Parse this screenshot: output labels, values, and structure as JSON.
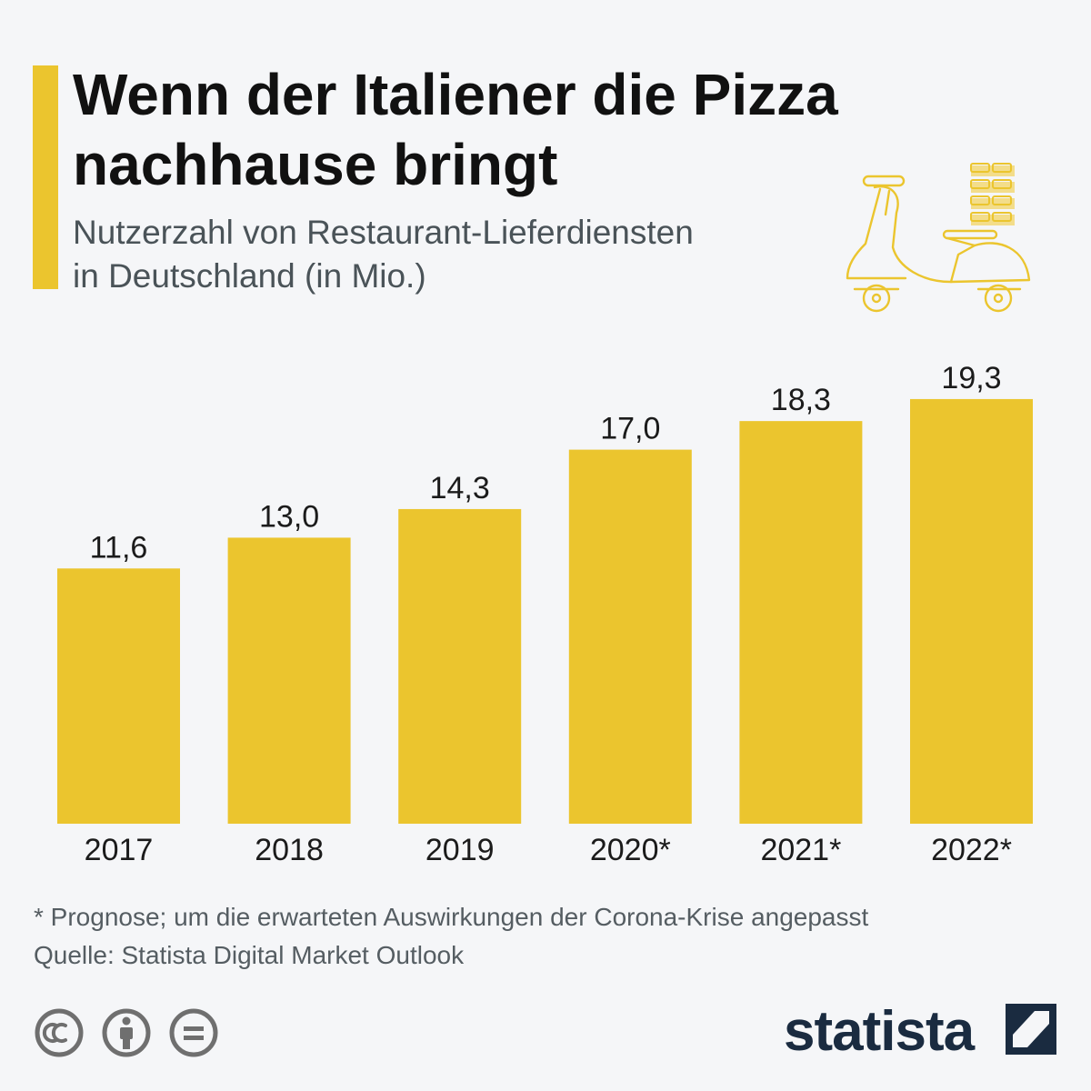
{
  "colors": {
    "accent": "#ebc52e",
    "bar": "#ebc52e",
    "background": "#f5f6f8",
    "title": "#111111",
    "subtitle": "#4a5358",
    "footnote": "#555d62",
    "brand": "#1a2b40",
    "icon": "#6f6f6f"
  },
  "header": {
    "title_lines": [
      "Wenn der Italiener die Pizza",
      "nachhause bringt"
    ],
    "subtitle_lines": [
      "Nutzerzahl von Restaurant-Lieferdiensten",
      "in Deutschland (in Mio.)"
    ]
  },
  "illustration": {
    "icon": "delivery-scooter-icon"
  },
  "chart_data": {
    "type": "bar",
    "categories": [
      "2017",
      "2018",
      "2019",
      "2020*",
      "2021*",
      "2022*"
    ],
    "values": [
      11.6,
      13.0,
      14.3,
      17.0,
      18.3,
      19.3
    ],
    "value_labels": [
      "11,6",
      "13,0",
      "14,3",
      "17,0",
      "18,3",
      "19,3"
    ],
    "title": "Wenn der Italiener die Pizza nachhause bringt",
    "subtitle": "Nutzerzahl von Restaurant-Lieferdiensten in Deutschland (in Mio.)",
    "ylim": [
      0,
      20
    ],
    "grid": false,
    "legend": "none"
  },
  "footer": {
    "note": "* Prognose; um die erwarteten Auswirkungen der Corona-Krise angepasst",
    "source": "Quelle: Statista Digital Market Outlook",
    "license_icons": [
      "cc-icon",
      "attribution-icon",
      "no-derivatives-icon"
    ],
    "brand": "statista",
    "brand_icon": "statista-logo-icon"
  }
}
